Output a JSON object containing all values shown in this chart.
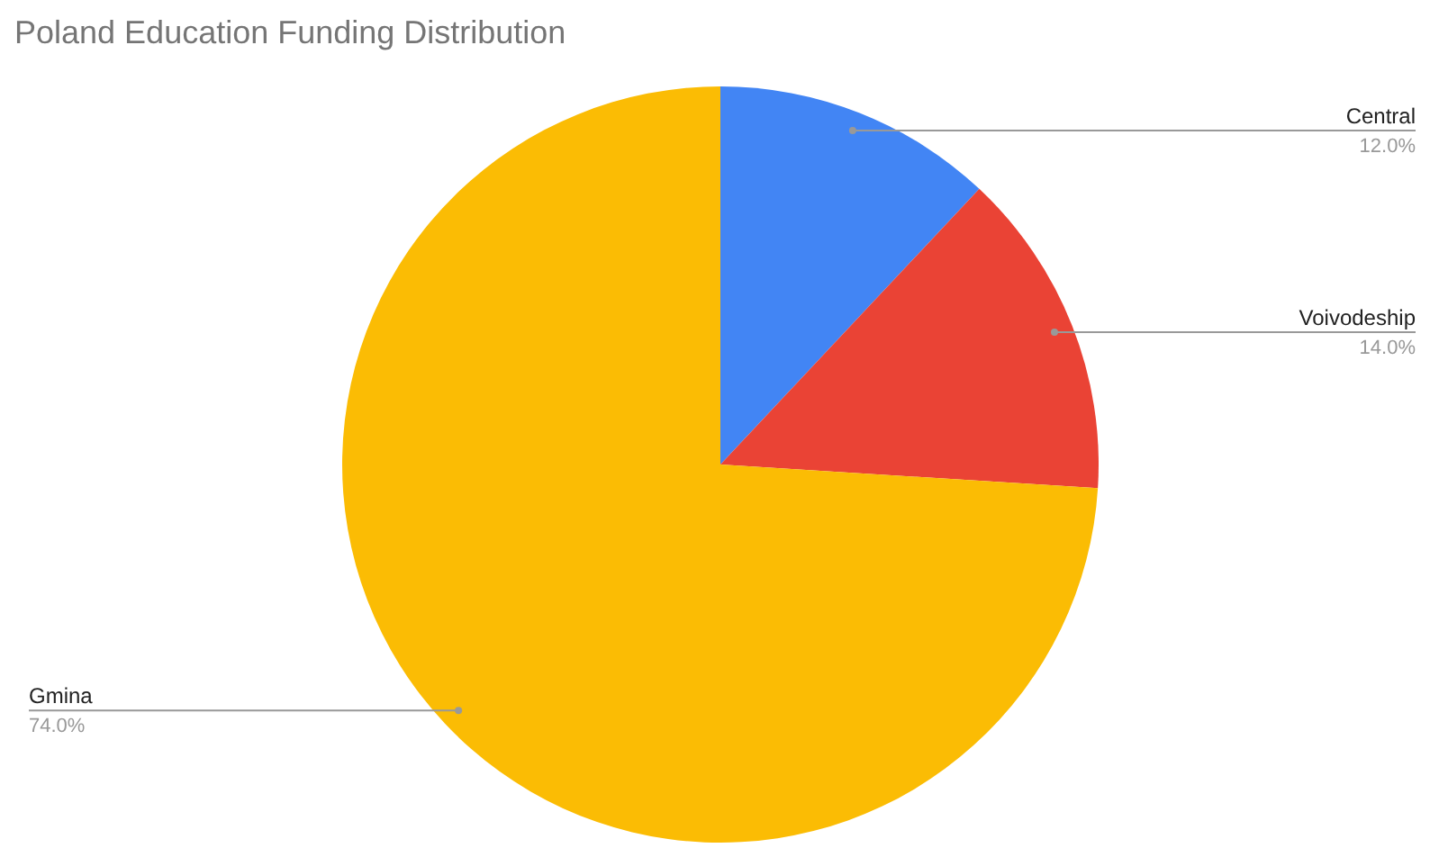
{
  "chart_data": {
    "type": "pie",
    "title": "Poland Education Funding Distribution",
    "categories": [
      "Central",
      "Voivodeship",
      "Gmina"
    ],
    "values": [
      12.0,
      14.0,
      74.0
    ],
    "colors": [
      "#4285f4",
      "#ea4335",
      "#fbbc04"
    ],
    "value_labels": [
      "12.0%",
      "14.0%",
      "74.0%"
    ]
  }
}
